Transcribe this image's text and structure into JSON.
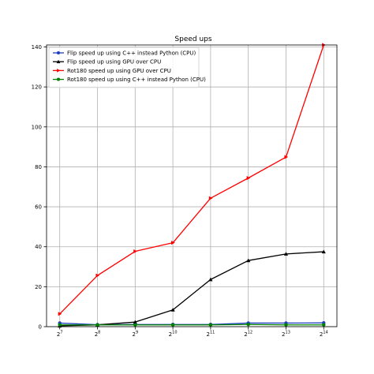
{
  "chart_data": {
    "type": "line",
    "title": "Speed ups",
    "xlabel": "",
    "ylabel": "",
    "x_base": 2,
    "x_exponents": [
      7,
      8,
      9,
      10,
      11,
      12,
      13,
      14
    ],
    "x_tick_labels": [
      "2^7",
      "2^8",
      "2^9",
      "2^10",
      "2^11",
      "2^12",
      "2^13",
      "2^14"
    ],
    "y_ticks": [
      0,
      20,
      40,
      60,
      80,
      100,
      120,
      140
    ],
    "ylim": [
      0,
      141
    ],
    "grid": true,
    "legend_position": "upper left",
    "series": [
      {
        "name": "Flip speed up using C++ instead Python (CPU)",
        "color": "#1f3fbf",
        "marker": "circle",
        "values": [
          1.8,
          1.0,
          1.1,
          1.1,
          1.1,
          1.8,
          1.8,
          1.9
        ]
      },
      {
        "name": "Flip speed up using GPU over CPU",
        "color": "#000000",
        "marker": "triangle-up",
        "values": [
          0.4,
          0.9,
          2.3,
          8.4,
          23.6,
          33.1,
          36.4,
          37.5
        ]
      },
      {
        "name": "Rot180 speed up using GPU over CPU",
        "color": "#ff0000",
        "marker": "triangle-right",
        "values": [
          6.4,
          25.6,
          37.7,
          42.0,
          64.3,
          74.4,
          84.9,
          141.0
        ]
      },
      {
        "name": "Rot180 speed up using C++ instead Python (CPU)",
        "color": "#008000",
        "marker": "circle",
        "values": [
          0.9,
          0.9,
          0.9,
          0.9,
          0.9,
          1.1,
          0.9,
          0.9
        ]
      }
    ]
  }
}
